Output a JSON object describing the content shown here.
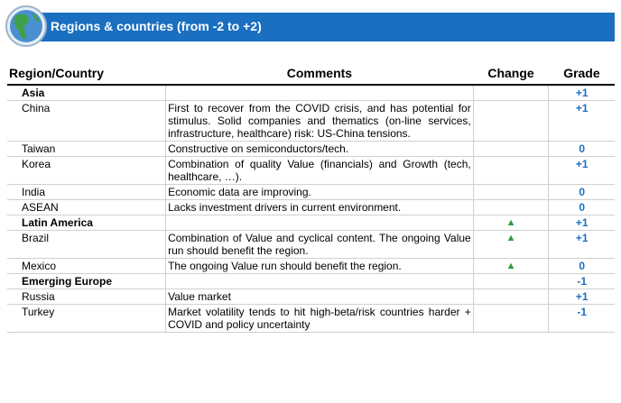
{
  "header": {
    "title": "Regions & countries (from -2 to +2)",
    "icon": "globe-icon"
  },
  "table": {
    "columns": [
      "Region/Country",
      "Comments",
      "Change",
      "Grade"
    ],
    "rows": [
      {
        "type": "group",
        "region": "Asia",
        "comment": "",
        "change": "",
        "grade": "+1"
      },
      {
        "type": "item",
        "region": "China",
        "comment": "First to recover from the COVID crisis, and has potential for stimulus. Solid companies and thematics (on-line services, infrastructure, healthcare) risk: US-China tensions.",
        "change": "",
        "grade": "+1"
      },
      {
        "type": "item",
        "region": "Taiwan",
        "comment": "Constructive on semiconductors/tech.",
        "change": "",
        "grade": "0"
      },
      {
        "type": "item",
        "region": "Korea",
        "comment": "Combination of quality Value (financials) and Growth (tech, healthcare, …).",
        "change": "",
        "grade": "+1"
      },
      {
        "type": "item",
        "region": "India",
        "comment": "Economic data are improving.",
        "change": "",
        "grade": "0"
      },
      {
        "type": "item",
        "region": "ASEAN",
        "comment": "Lacks investment drivers in current environment.",
        "change": "",
        "grade": "0"
      },
      {
        "type": "group",
        "region": "Latin America",
        "comment": "",
        "change": "▲",
        "grade": "+1"
      },
      {
        "type": "item",
        "region": "Brazil",
        "comment": "Combination of Value and cyclical content. The ongoing Value run should benefit the region.",
        "change": "▲",
        "grade": "+1"
      },
      {
        "type": "item",
        "region": "Mexico",
        "comment": "The ongoing Value run should benefit the region.",
        "change": "▲",
        "grade": "0"
      },
      {
        "type": "group",
        "region": "Emerging Europe",
        "comment": "",
        "change": "",
        "grade": "-1"
      },
      {
        "type": "item",
        "region": "Russia",
        "comment": "Value market",
        "change": "",
        "grade": "+1"
      },
      {
        "type": "item",
        "region": "Turkey",
        "comment": "Market volatility tends to hit high-beta/risk countries harder + COVID and policy uncertainty",
        "change": "",
        "grade": "-1"
      }
    ]
  },
  "colors": {
    "banner": "#1a6fc0",
    "grade": "#1a6fc0",
    "change_up": "#2e9a3c"
  }
}
